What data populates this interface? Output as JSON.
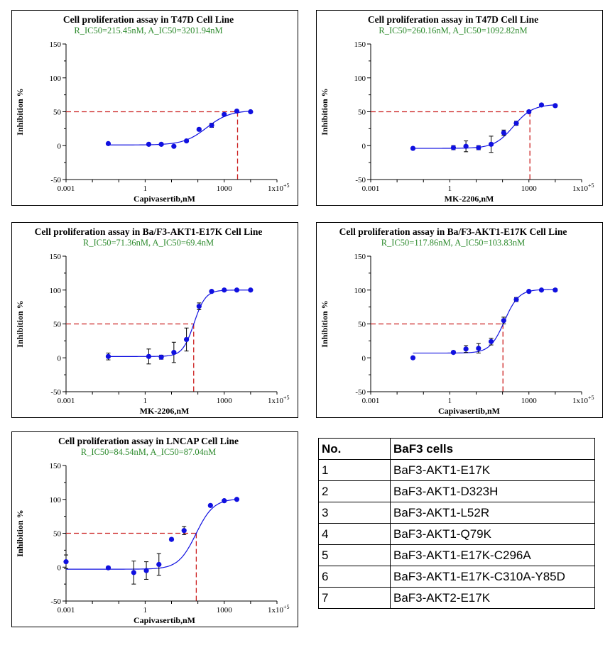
{
  "chart_data": [
    {
      "type": "scatter",
      "title": "Cell proliferation assay in T47D Cell Line",
      "subtitle": "R_IC50=215.45nM, A_IC50=3201.94nM",
      "xlabel": "Capivasertib,nM",
      "ylabel": "Inhibition %",
      "xscale": "log",
      "xlim": [
        0.001,
        100000
      ],
      "ylim": [
        -50,
        150
      ],
      "xticks": [
        "0.001",
        "1",
        "1000",
        "1x10^5"
      ],
      "yticks": [
        "-50",
        "0",
        "50",
        "100",
        "150"
      ],
      "ic50_guide": 3201.94,
      "points": [
        {
          "x": 0.04,
          "y": 3,
          "err": 1
        },
        {
          "x": 1.37,
          "y": 2,
          "err": 1
        },
        {
          "x": 4.1,
          "y": 2,
          "err": 1
        },
        {
          "x": 12.3,
          "y": -1,
          "err": 1
        },
        {
          "x": 37,
          "y": 7,
          "err": 1
        },
        {
          "x": 111,
          "y": 24,
          "err": 2
        },
        {
          "x": 333,
          "y": 30,
          "err": 3
        },
        {
          "x": 1000,
          "y": 46,
          "err": 2
        },
        {
          "x": 3000,
          "y": 51,
          "err": 1
        },
        {
          "x": 10000,
          "y": 50,
          "err": 1
        }
      ],
      "fit": {
        "bottom": 1,
        "top": 52,
        "ic50": 215.45,
        "hill": 1.0
      }
    },
    {
      "type": "scatter",
      "title": "Cell proliferation assay in T47D Cell Line",
      "subtitle": "R_IC50=260.16nM, A_IC50=1092.82nM",
      "xlabel": "MK-2206,nM",
      "ylabel": "Inhibition %",
      "xscale": "log",
      "xlim": [
        0.001,
        100000
      ],
      "ylim": [
        -50,
        150
      ],
      "xticks": [
        "0.001",
        "1",
        "1000",
        "1x10^5"
      ],
      "yticks": [
        "-50",
        "0",
        "50",
        "100",
        "150"
      ],
      "ic50_guide": 1092.82,
      "points": [
        {
          "x": 0.04,
          "y": -4,
          "err": 1
        },
        {
          "x": 1.37,
          "y": -3,
          "err": 3
        },
        {
          "x": 4.1,
          "y": -1,
          "err": 8
        },
        {
          "x": 12.3,
          "y": -3,
          "err": 3
        },
        {
          "x": 37,
          "y": 2,
          "err": 12
        },
        {
          "x": 111,
          "y": 19,
          "err": 4
        },
        {
          "x": 333,
          "y": 33,
          "err": 3
        },
        {
          "x": 1000,
          "y": 50,
          "err": 2
        },
        {
          "x": 3000,
          "y": 60,
          "err": 2
        },
        {
          "x": 10000,
          "y": 59,
          "err": 2
        }
      ],
      "fit": {
        "bottom": -4,
        "top": 61,
        "ic50": 260.16,
        "hill": 1.2
      }
    },
    {
      "type": "scatter",
      "title": "Cell proliferation assay in Ba/F3-AKT1-E17K Cell Line",
      "subtitle": "R_IC50=71.36nM, A_IC50=69.4nM",
      "xlabel": "MK-2206,nM",
      "ylabel": "Inhibition %",
      "xscale": "log",
      "xlim": [
        0.001,
        100000
      ],
      "ylim": [
        -50,
        150
      ],
      "xticks": [
        "0.001",
        "1",
        "1000",
        "1x10^5"
      ],
      "yticks": [
        "-50",
        "0",
        "50",
        "100",
        "150"
      ],
      "ic50_guide": 69.4,
      "points": [
        {
          "x": 0.04,
          "y": 2,
          "err": 5
        },
        {
          "x": 1.37,
          "y": 2,
          "err": 11
        },
        {
          "x": 4.1,
          "y": 1,
          "err": 3
        },
        {
          "x": 12.3,
          "y": 8,
          "err": 15
        },
        {
          "x": 37,
          "y": 27,
          "err": 17
        },
        {
          "x": 111,
          "y": 76,
          "err": 5
        },
        {
          "x": 333,
          "y": 98,
          "err": 1
        },
        {
          "x": 1000,
          "y": 100,
          "err": 1
        },
        {
          "x": 3000,
          "y": 100,
          "err": 1
        },
        {
          "x": 10000,
          "y": 100,
          "err": 1
        }
      ],
      "fit": {
        "bottom": 2,
        "top": 100,
        "ic50": 71.36,
        "hill": 2.0
      }
    },
    {
      "type": "scatter",
      "title": "Cell proliferation assay in Ba/F3-AKT1-E17K Cell Line",
      "subtitle": "R_IC50=117.86nM, A_IC50=103.83nM",
      "xlabel": "Capivasertib,nM",
      "ylabel": "Inhibition %",
      "xscale": "log",
      "xlim": [
        0.001,
        100000
      ],
      "ylim": [
        -50,
        150
      ],
      "xticks": [
        "0.001",
        "1",
        "1000",
        "1x10^5"
      ],
      "yticks": [
        "-50",
        "0",
        "50",
        "100",
        "150"
      ],
      "ic50_guide": 103.83,
      "points": [
        {
          "x": 0.04,
          "y": 0,
          "err": 1
        },
        {
          "x": 1.37,
          "y": 8,
          "err": 2
        },
        {
          "x": 4.1,
          "y": 13,
          "err": 5
        },
        {
          "x": 12.3,
          "y": 14,
          "err": 7
        },
        {
          "x": 37,
          "y": 24,
          "err": 5
        },
        {
          "x": 111,
          "y": 55,
          "err": 5
        },
        {
          "x": 333,
          "y": 86,
          "err": 3
        },
        {
          "x": 1000,
          "y": 98,
          "err": 1
        },
        {
          "x": 3000,
          "y": 100,
          "err": 1
        },
        {
          "x": 10000,
          "y": 100,
          "err": 2
        }
      ],
      "fit": {
        "bottom": 7,
        "top": 101,
        "ic50": 117.86,
        "hill": 1.6
      }
    },
    {
      "type": "scatter",
      "title": "Cell proliferation assay in LNCAP Cell Line",
      "subtitle": "R_IC50=84.54nM, A_IC50=87.04nM",
      "xlabel": "Capivasertib,nM",
      "ylabel": "Inhibition %",
      "xscale": "log",
      "xlim": [
        0.001,
        100000
      ],
      "ylim": [
        -50,
        150
      ],
      "xticks": [
        "0.001",
        "1",
        "1000",
        "1x10^5"
      ],
      "yticks": [
        "-50",
        "0",
        "50",
        "100",
        "150"
      ],
      "ic50_guide": 87.04,
      "points": [
        {
          "x": 0.001,
          "y": 8,
          "err": 10
        },
        {
          "x": 0.04,
          "y": -1,
          "err": 2
        },
        {
          "x": 0.37,
          "y": -8,
          "err": 17
        },
        {
          "x": 1.11,
          "y": -5,
          "err": 13
        },
        {
          "x": 3.33,
          "y": 4,
          "err": 16
        },
        {
          "x": 10,
          "y": 41,
          "err": 2
        },
        {
          "x": 30,
          "y": 54,
          "err": 6
        },
        {
          "x": 300,
          "y": 91,
          "err": 1
        },
        {
          "x": 1000,
          "y": 98,
          "err": 1
        },
        {
          "x": 3000,
          "y": 100,
          "err": 1
        }
      ],
      "fit": {
        "bottom": -3,
        "top": 101,
        "ic50": 84.54,
        "hill": 1.3
      }
    }
  ],
  "table": {
    "headers": [
      "No.",
      "BaF3 cells"
    ],
    "rows": [
      [
        "1",
        "BaF3-AKT1-E17K"
      ],
      [
        "2",
        "BaF3-AKT1-D323H"
      ],
      [
        "3",
        "BaF3-AKT1-L52R"
      ],
      [
        "4",
        "BaF3-AKT1-Q79K"
      ],
      [
        "5",
        "BaF3-AKT1-E17K-C296A"
      ],
      [
        "6",
        "BaF3-AKT1-E17K-C310A-Y85D"
      ],
      [
        "7",
        "BaF3-AKT2-E17K"
      ]
    ]
  },
  "colors": {
    "marker": "#1010e0",
    "fit_line": "#1010e0",
    "ic50_guide": "#cc2020",
    "subtitle": "#2e8b2e",
    "axis": "#000000"
  }
}
